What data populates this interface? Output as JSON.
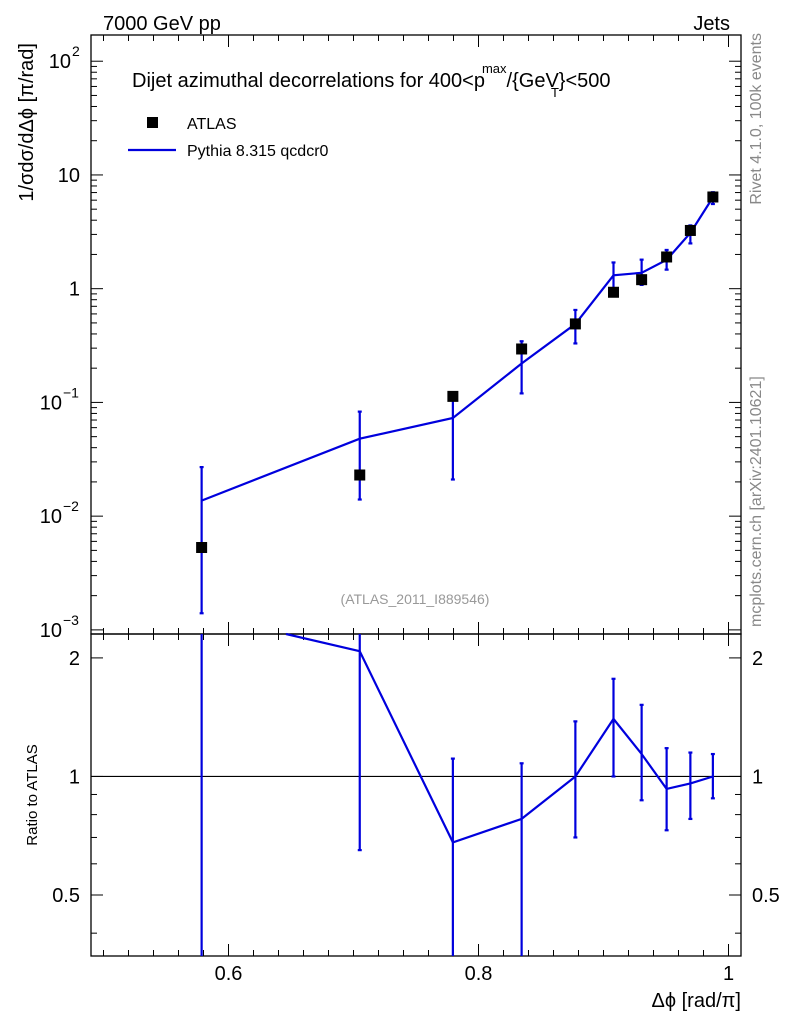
{
  "header": {
    "left": "7000 GeV pp",
    "right": "Jets"
  },
  "side_labels": {
    "top": "Rivet 4.1.0,  100k events",
    "bottom": "mcplots.cern.ch [arXiv:2401.10621]"
  },
  "watermark": "(ATLAS_2011_I889546)",
  "colors": {
    "mc": "#0000dd",
    "data": "#000000"
  },
  "chart_data": [
    {
      "type": "scatter",
      "title_parts": {
        "prefix": "Dijet azimuthal decorrelations for 400<p",
        "sup": "max",
        "sub": "T",
        "suffix": "/{GeV}<500"
      },
      "ylabel": "1/σdσ/dΔϕ [π/rad]",
      "yscale": "log",
      "ylim": [
        0.00092,
        170
      ],
      "xlim": [
        0.49,
        1.01
      ],
      "ytick_labels": [
        {
          "value": 100,
          "base": "10",
          "exp": "2"
        },
        {
          "value": 10,
          "base": "10",
          "exp": ""
        },
        {
          "value": 1,
          "base": "1",
          "exp": ""
        },
        {
          "value": 0.1,
          "base": "10",
          "exp": "−1"
        },
        {
          "value": 0.01,
          "base": "10",
          "exp": "−2"
        },
        {
          "value": 0.001,
          "base": "10",
          "exp": "−3"
        }
      ],
      "legend": [
        "ATLAS",
        "Pythia 8.315 qcdcr0"
      ],
      "series": [
        {
          "name": "ATLAS",
          "x": [
            0.5785,
            0.705,
            0.7795,
            0.8345,
            0.8775,
            0.908,
            0.9305,
            0.9505,
            0.9695,
            0.9875
          ],
          "y": [
            0.0053,
            0.023,
            0.113,
            0.295,
            0.49,
            0.93,
            1.2,
            1.9,
            3.25,
            6.4
          ]
        },
        {
          "name": "Pythia 8.315 qcdcr0",
          "x": [
            0.5785,
            0.705,
            0.7795,
            0.8345,
            0.8775,
            0.908,
            0.9305,
            0.9505,
            0.9695,
            0.9875
          ],
          "y": [
            0.0137,
            0.048,
            0.073,
            0.22,
            0.49,
            1.31,
            1.38,
            1.79,
            3.1,
            6.35
          ],
          "err_low": [
            0.0123,
            0.034,
            0.052,
            0.1,
            0.16,
            0.44,
            0.3,
            0.32,
            0.6,
            0.8
          ],
          "err_high": [
            0.0133,
            0.035,
            0.047,
            0.125,
            0.16,
            0.39,
            0.42,
            0.4,
            0.5,
            0.7
          ]
        }
      ]
    },
    {
      "type": "line",
      "ylabel": "Ratio to ATLAS",
      "xlabel": "Δϕ [rad/π]",
      "ylim": [
        0.35,
        2.3
      ],
      "xlim": [
        0.49,
        1.01
      ],
      "yticks": [
        0.5,
        1,
        2
      ],
      "ytick_labels": [
        "0.5",
        "1",
        "2"
      ],
      "xticks": [
        0.6,
        0.8,
        1
      ],
      "xtick_labels": [
        "0.6",
        "0.8",
        "1"
      ],
      "reference": 1,
      "series": [
        {
          "name": "Pythia 8.315 qcdcr0 / ATLAS",
          "x": [
            0.5785,
            0.705,
            0.7795,
            0.8345,
            0.8775,
            0.908,
            0.9305,
            0.9505,
            0.9695,
            0.9875
          ],
          "y": [
            2.58,
            2.08,
            0.68,
            0.78,
            1.0,
            1.4,
            1.14,
            0.93,
            0.96,
            1.0
          ],
          "err_low": [
            2.3,
            1.43,
            0.33,
            0.43,
            0.3,
            0.4,
            0.27,
            0.2,
            0.18,
            0.12
          ],
          "err_high": [
            1.5,
            0.65,
            0.43,
            0.3,
            0.38,
            0.37,
            0.38,
            0.25,
            0.19,
            0.14
          ]
        }
      ]
    }
  ]
}
